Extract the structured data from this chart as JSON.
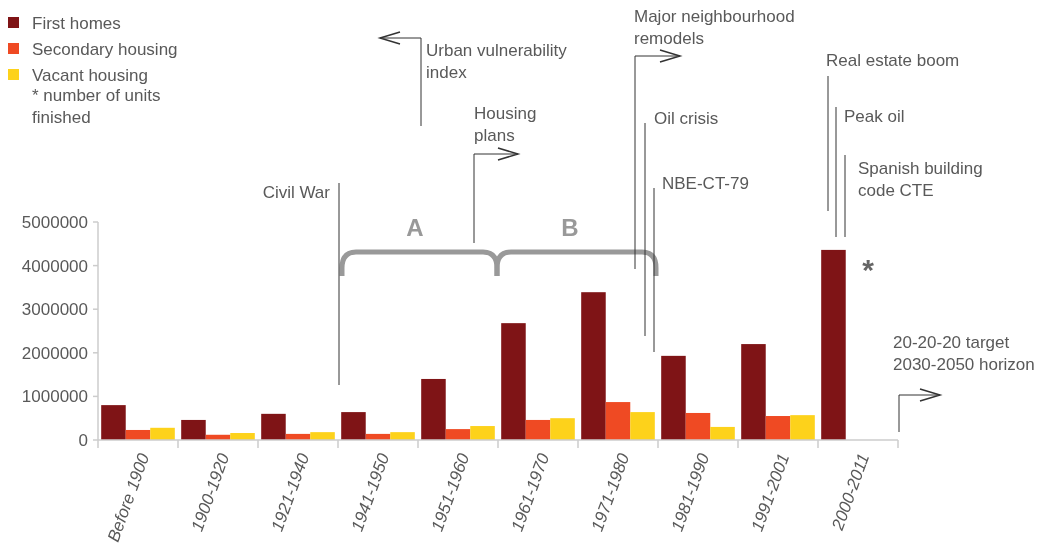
{
  "chart_data": {
    "type": "bar",
    "categories": [
      "Before 1900",
      "1900-1920",
      "1921-1940",
      "1941-1950",
      "1951-1960",
      "1961-1970",
      "1971-1980",
      "1981-1990",
      "1991-2001",
      "2000-2011"
    ],
    "series": [
      {
        "name": "First homes",
        "color": "#7f1416",
        "values": [
          800000,
          460000,
          600000,
          640000,
          1400000,
          2680000,
          3390000,
          1930000,
          2200000,
          4360000
        ]
      },
      {
        "name": "Secondary housing",
        "color": "#ef4a23",
        "values": [
          230000,
          120000,
          140000,
          140000,
          250000,
          460000,
          870000,
          620000,
          550000,
          null
        ]
      },
      {
        "name": "Vacant housing",
        "color": "#fdd21b",
        "values": [
          280000,
          160000,
          180000,
          180000,
          320000,
          500000,
          640000,
          300000,
          570000,
          null
        ]
      }
    ],
    "ylim": [
      0,
      5000000
    ],
    "yticks": [
      0,
      1000000,
      2000000,
      3000000,
      4000000,
      5000000
    ],
    "grid": false,
    "legend": "top left",
    "annotations": [
      "* number of units\nfinished",
      "Civil War",
      "Urban vulnerability\nindex",
      "Housing\nplans",
      "A",
      "B",
      "Major neighbourhood\nremodels",
      "Oil crisis",
      "NBE-CT-79",
      "Real estate boom",
      "Peak oil",
      "Spanish building\ncode CTE",
      "*",
      "20-20-20 target\n2030-2050 horizon"
    ]
  }
}
